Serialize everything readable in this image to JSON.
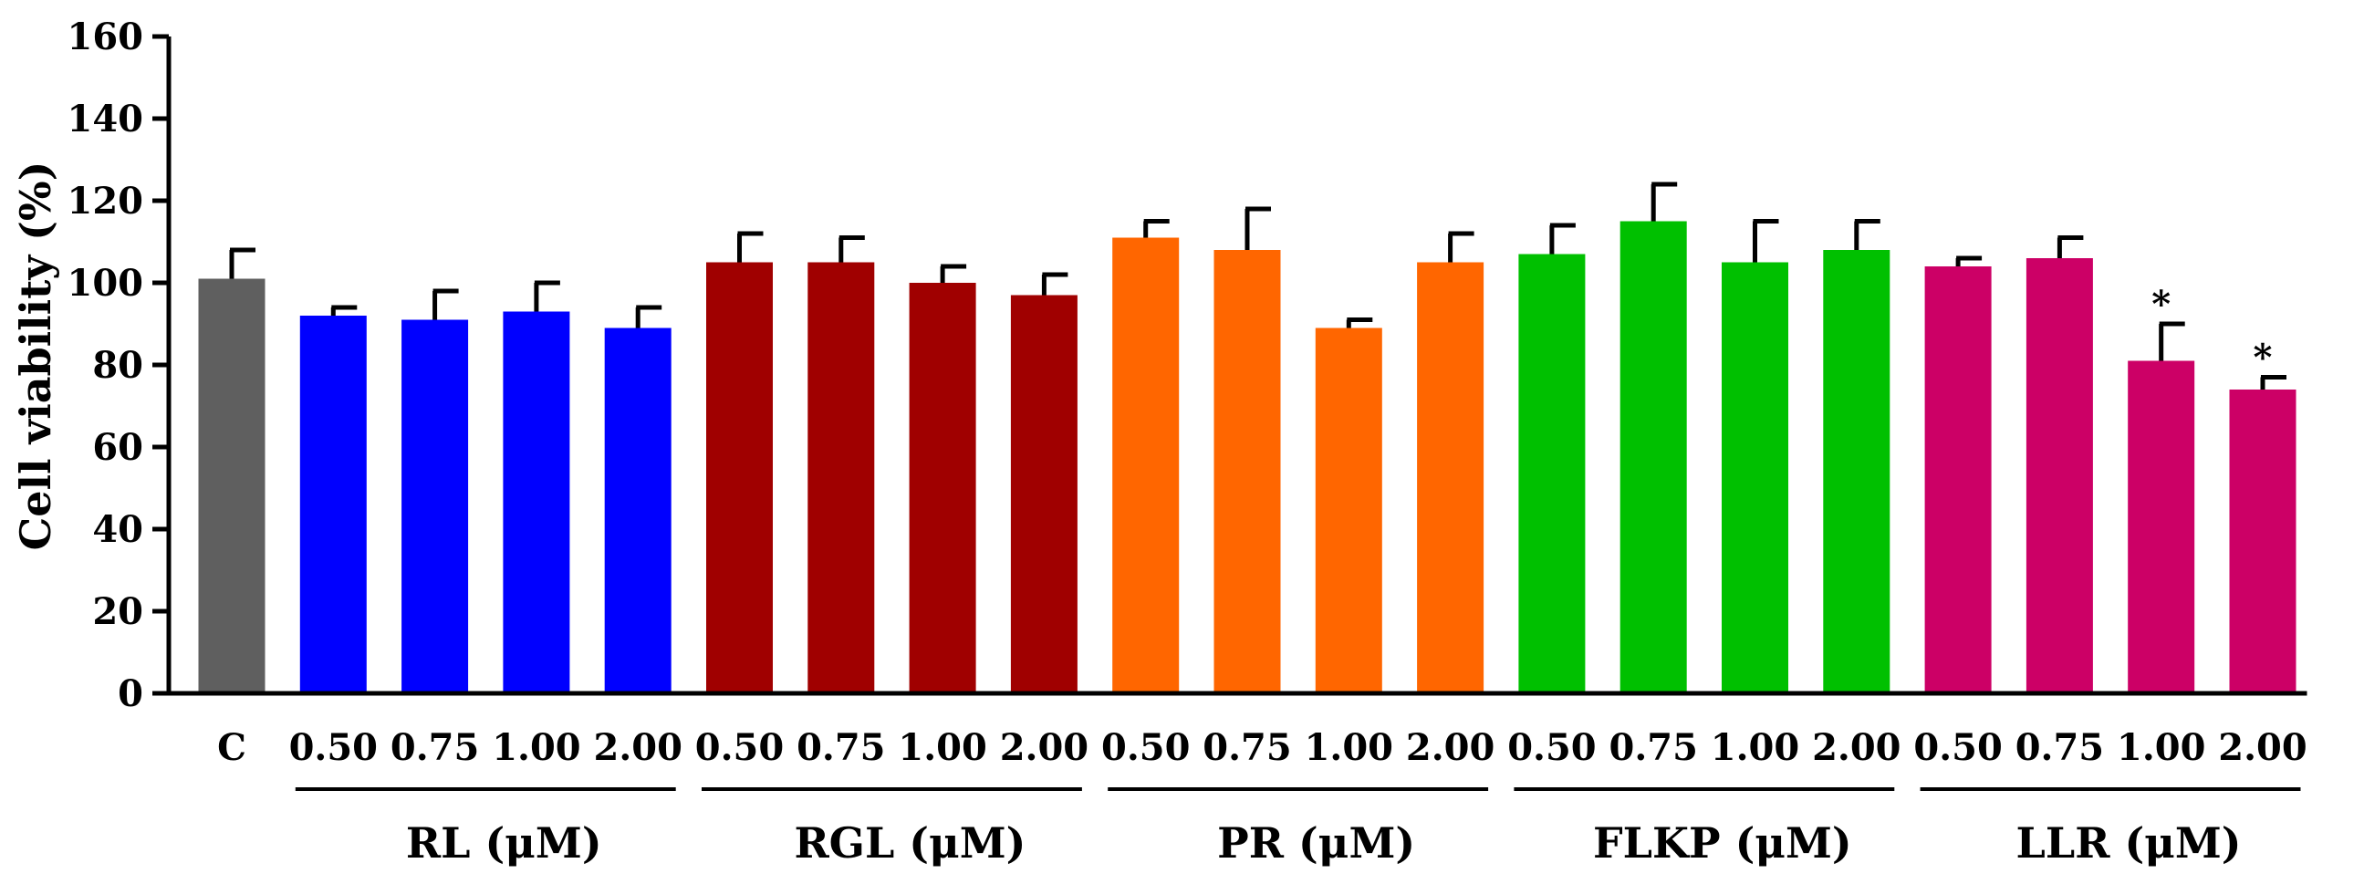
{
  "chart_data": {
    "type": "bar",
    "title": "",
    "ylabel": "Cell viability (%)",
    "ylim": [
      0,
      160
    ],
    "yticks": [
      0,
      20,
      40,
      60,
      80,
      100,
      120,
      140,
      160
    ],
    "bars": [
      {
        "label": "C",
        "group": "control",
        "value": 101,
        "error": 7,
        "color": "#5f5f5f",
        "sig": ""
      },
      {
        "label": "0.50",
        "group": "RL",
        "value": 92,
        "error": 2,
        "color": "#0000ff",
        "sig": ""
      },
      {
        "label": "0.75",
        "group": "RL",
        "value": 91,
        "error": 7,
        "color": "#0000ff",
        "sig": ""
      },
      {
        "label": "1.00",
        "group": "RL",
        "value": 93,
        "error": 7,
        "color": "#0000ff",
        "sig": ""
      },
      {
        "label": "2.00",
        "group": "RL",
        "value": 89,
        "error": 5,
        "color": "#0000ff",
        "sig": ""
      },
      {
        "label": "0.50",
        "group": "RGL",
        "value": 105,
        "error": 7,
        "color": "#a00000",
        "sig": ""
      },
      {
        "label": "0.75",
        "group": "RGL",
        "value": 105,
        "error": 6,
        "color": "#a00000",
        "sig": ""
      },
      {
        "label": "1.00",
        "group": "RGL",
        "value": 100,
        "error": 4,
        "color": "#a00000",
        "sig": ""
      },
      {
        "label": "2.00",
        "group": "RGL",
        "value": 97,
        "error": 5,
        "color": "#a00000",
        "sig": ""
      },
      {
        "label": "0.50",
        "group": "PR",
        "value": 111,
        "error": 4,
        "color": "#ff6600",
        "sig": ""
      },
      {
        "label": "0.75",
        "group": "PR",
        "value": 108,
        "error": 10,
        "color": "#ff6600",
        "sig": ""
      },
      {
        "label": "1.00",
        "group": "PR",
        "value": 89,
        "error": 2,
        "color": "#ff6600",
        "sig": ""
      },
      {
        "label": "2.00",
        "group": "PR",
        "value": 105,
        "error": 7,
        "color": "#ff6600",
        "sig": ""
      },
      {
        "label": "0.50",
        "group": "FLKP",
        "value": 107,
        "error": 7,
        "color": "#00c000",
        "sig": ""
      },
      {
        "label": "0.75",
        "group": "FLKP",
        "value": 115,
        "error": 9,
        "color": "#00c000",
        "sig": ""
      },
      {
        "label": "1.00",
        "group": "FLKP",
        "value": 105,
        "error": 10,
        "color": "#00c000",
        "sig": ""
      },
      {
        "label": "2.00",
        "group": "FLKP",
        "value": 108,
        "error": 7,
        "color": "#00c000",
        "sig": ""
      },
      {
        "label": "0.50",
        "group": "LLR",
        "value": 104,
        "error": 2,
        "color": "#cc0066",
        "sig": ""
      },
      {
        "label": "0.75",
        "group": "LLR",
        "value": 106,
        "error": 5,
        "color": "#cc0066",
        "sig": ""
      },
      {
        "label": "1.00",
        "group": "LLR",
        "value": 81,
        "error": 9,
        "color": "#cc0066",
        "sig": "*"
      },
      {
        "label": "2.00",
        "group": "LLR",
        "value": 74,
        "error": 3,
        "color": "#cc0066",
        "sig": "*"
      }
    ],
    "groups": [
      {
        "name": "RL",
        "label": "RL (μM)"
      },
      {
        "name": "RGL",
        "label": "RGL (μM)"
      },
      {
        "name": "PR",
        "label": "PR (μM)"
      },
      {
        "name": "FLKP",
        "label": "FLKP (μM)"
      },
      {
        "name": "LLR",
        "label": "LLR (μM)"
      }
    ]
  }
}
